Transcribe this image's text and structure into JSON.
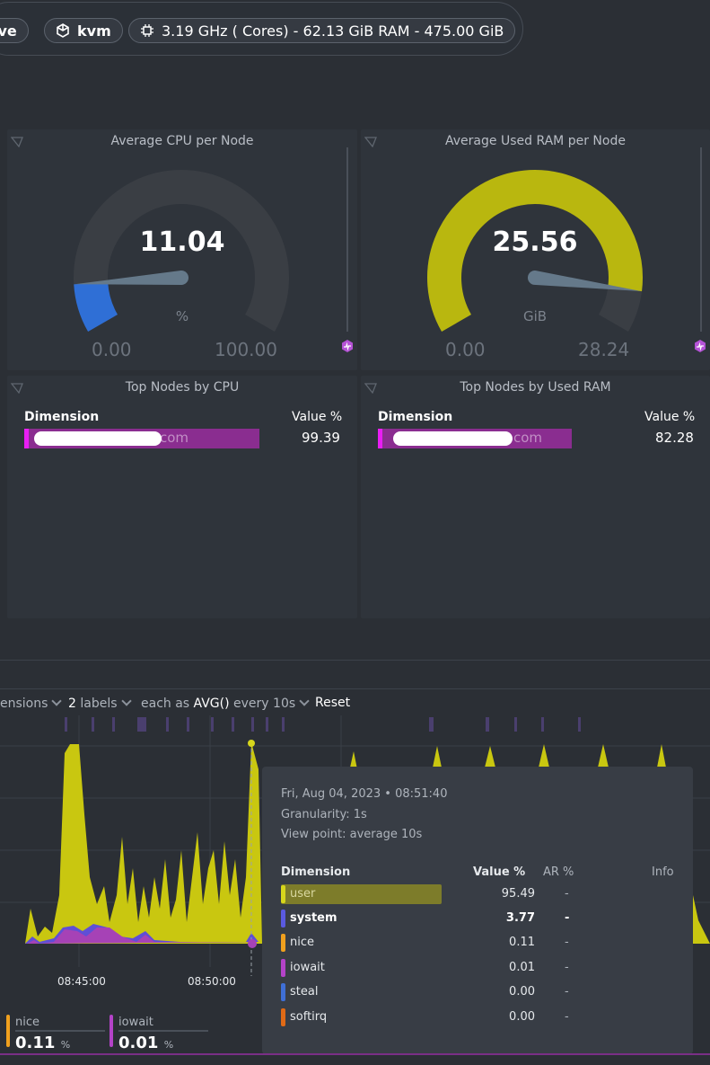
{
  "header": {
    "pills": [
      {
        "label": "ive",
        "icon": "none"
      },
      {
        "label": "kvm",
        "icon": "cube-icon"
      },
      {
        "label": "3.19 GHz ( Cores) - 62.13 GiB RAM - 475.00 GiB",
        "icon": "cpu-icon"
      }
    ]
  },
  "gauges": {
    "cpu": {
      "title": "Average CPU per Node",
      "value": "11.04",
      "unit": "%",
      "min": "0.00",
      "max": "100.00",
      "value_num": 11.04,
      "max_num": 100,
      "color": "#2f6fd6"
    },
    "ram": {
      "title": "Average Used RAM per Node",
      "value": "25.56",
      "unit": "GiB",
      "min": "0.00",
      "max": "28.24",
      "value_num": 25.56,
      "max_num": 28.24,
      "color": "#b9b70f"
    }
  },
  "tables": {
    "cpu": {
      "title": "Top Nodes by CPU",
      "col_dimension": "Dimension",
      "col_value": "Value %",
      "row_name_suffix": "com",
      "row_value": "99.39",
      "row_prefix": "g"
    },
    "ram": {
      "title": "Top Nodes by Used RAM",
      "col_dimension": "Dimension",
      "col_value": "Value %",
      "row_name_suffix": "com",
      "row_value": "82.28",
      "row_prefix": "g"
    }
  },
  "toolbar": {
    "dimensions": "ensions",
    "labels_count": "2",
    "labels": "labels",
    "each_as": "each as",
    "agg": "AVG()",
    "every": "every 10s",
    "reset": "Reset"
  },
  "chart": {
    "x_ticks": [
      "08:45:00",
      "08:50:00"
    ]
  },
  "tooltip": {
    "date": "Fri, Aug 04, 2023 • 08:51:40",
    "granularity": "Granularity: 1s",
    "view_point": "View point: average 10s",
    "headers": {
      "dimension": "Dimension",
      "value": "Value %",
      "ar": "AR %",
      "info": "Info"
    },
    "rows": [
      {
        "name": "user",
        "value": "95.49",
        "ar": "-",
        "color": "#d7d61c"
      },
      {
        "name": "system",
        "value": "3.77",
        "ar": "-",
        "color": "#5a5ae0"
      },
      {
        "name": "nice",
        "value": "0.11",
        "ar": "-",
        "color": "#f0a01e"
      },
      {
        "name": "iowait",
        "value": "0.01",
        "ar": "-",
        "color": "#b443c8"
      },
      {
        "name": "steal",
        "value": "0.00",
        "ar": "-",
        "color": "#3f6fd6"
      },
      {
        "name": "softirq",
        "value": "0.00",
        "ar": "-",
        "color": "#e06a16"
      }
    ]
  },
  "mini": [
    {
      "name": "nice",
      "value": "0.11",
      "unit": "%",
      "color": "#f0a01e"
    },
    {
      "name": "iowait",
      "value": "0.01",
      "unit": "%",
      "color": "#b443c8"
    }
  ]
}
